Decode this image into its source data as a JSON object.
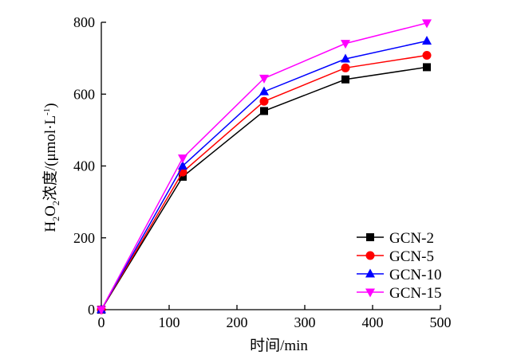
{
  "chart_data": {
    "type": "line",
    "title": "",
    "xlabel": "时间/min",
    "ylabel": {
      "main": "H",
      "sub1": "2",
      "mid": "O",
      "sub2": "2",
      "rest": "浓度/(μmol·L",
      "sup": "-1",
      "end": ")"
    },
    "xlim": [
      0,
      500
    ],
    "ylim": [
      0,
      800
    ],
    "xticks": [
      "0",
      "100",
      "200",
      "300",
      "400",
      "500"
    ],
    "yticks": [
      "0",
      "200",
      "400",
      "600",
      "800"
    ],
    "grid": false,
    "legend_position": "bottom-right",
    "x": [
      0,
      120,
      240,
      360,
      480
    ],
    "series": [
      {
        "name": "GCN-2",
        "color": "#000000",
        "marker": "square",
        "values": [
          0,
          370,
          553,
          641,
          675
        ]
      },
      {
        "name": "GCN-5",
        "color": "#ff0000",
        "marker": "circle",
        "values": [
          0,
          383,
          580,
          673,
          708
        ]
      },
      {
        "name": "GCN-10",
        "color": "#0000ff",
        "marker": "triangle-up",
        "values": [
          0,
          400,
          607,
          698,
          748
        ]
      },
      {
        "name": "GCN-15",
        "color": "#ff00ff",
        "marker": "triangle-down",
        "values": [
          0,
          422,
          644,
          741,
          798
        ]
      }
    ]
  }
}
